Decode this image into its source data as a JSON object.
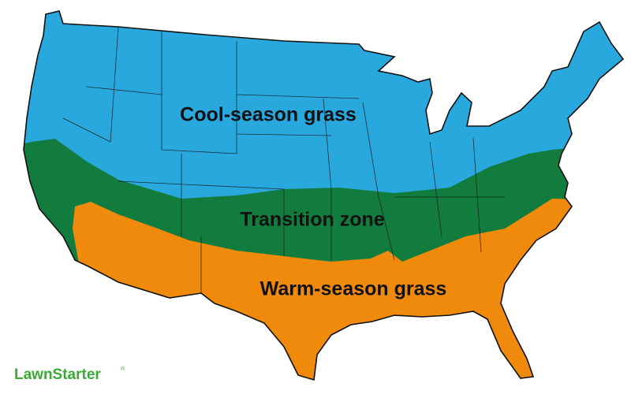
{
  "map": {
    "regions": [
      {
        "label": "Cool-season grass"
      },
      {
        "label": "Transition zone"
      },
      {
        "label": "Warm-season grass"
      }
    ]
  },
  "brand": {
    "name": "LawnStarter",
    "mark": "®"
  }
}
